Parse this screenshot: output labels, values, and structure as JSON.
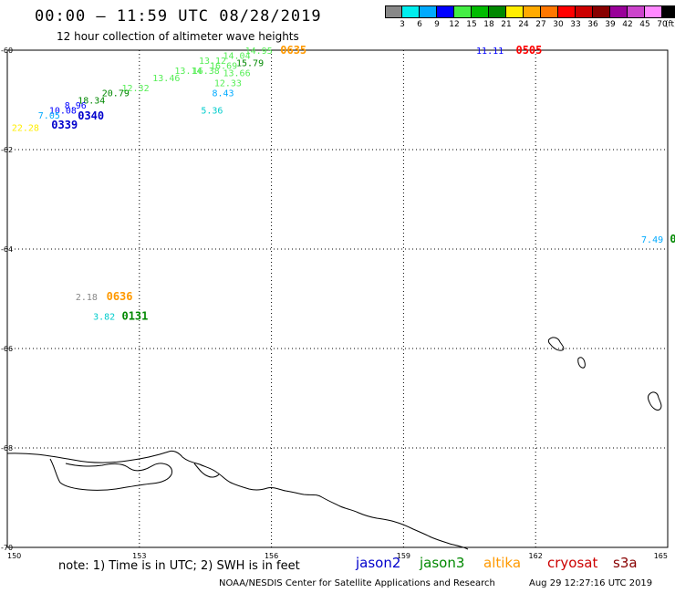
{
  "header": {
    "title": "00:00 – 11:59 UTC 08/28/2019",
    "subtitle": "12 hour collection of altimeter wave heights"
  },
  "colorbar": {
    "unit": "(ft)",
    "swatches": [
      "#888888",
      "#00eeee",
      "#00aaff",
      "#0000ff",
      "#44ee44",
      "#00bb00",
      "#008800",
      "#ffee00",
      "#ffaa00",
      "#ff7700",
      "#ff0000",
      "#cc0000",
      "#880000",
      "#990099",
      "#cc44cc",
      "#ff88ff",
      "#000000"
    ],
    "ticks": [
      "3",
      "6",
      "9",
      "12",
      "15",
      "18",
      "21",
      "24",
      "27",
      "30",
      "33",
      "36",
      "39",
      "42",
      "45",
      "70"
    ]
  },
  "map": {
    "lat_labels": [
      "-60",
      "-62",
      "-64",
      "-66",
      "-68",
      "-70"
    ],
    "lon_labels": [
      "150",
      "153",
      "156",
      "159",
      "162",
      "165"
    ],
    "labels": [
      {
        "text": "0635",
        "color": "#ff9900",
        "lon": 156.2,
        "lat": -60.0,
        "kind": "time"
      },
      {
        "text": "14.95",
        "color": "#55ee55",
        "lon": 155.4,
        "lat": -60.0,
        "kind": "value"
      },
      {
        "text": "14.04",
        "color": "#55ee55",
        "lon": 154.9,
        "lat": -60.1,
        "kind": "value"
      },
      {
        "text": "13.12",
        "color": "#55ee55",
        "lon": 154.35,
        "lat": -60.2,
        "kind": "value"
      },
      {
        "text": "15.79",
        "color": "#008800",
        "lon": 155.2,
        "lat": -60.25,
        "kind": "value"
      },
      {
        "text": "13.66",
        "color": "#55ee55",
        "lon": 154.9,
        "lat": -60.45,
        "kind": "value"
      },
      {
        "text": "13.14",
        "color": "#55ee55",
        "lon": 153.8,
        "lat": -60.4,
        "kind": "value"
      },
      {
        "text": "16.38",
        "color": "#55ee55",
        "lon": 154.2,
        "lat": -60.4,
        "kind": "value"
      },
      {
        "text": "16.69",
        "color": "#55ee55",
        "lon": 154.6,
        "lat": -60.3,
        "kind": "value"
      },
      {
        "text": "13.46",
        "color": "#55ee55",
        "lon": 153.3,
        "lat": -60.55,
        "kind": "value"
      },
      {
        "text": "12.33",
        "color": "#55ee55",
        "lon": 154.7,
        "lat": -60.65,
        "kind": "value"
      },
      {
        "text": "12.32",
        "color": "#55ee55",
        "lon": 152.6,
        "lat": -60.75,
        "kind": "value"
      },
      {
        "text": "8.43",
        "color": "#00aaff",
        "lon": 154.65,
        "lat": -60.85,
        "kind": "value"
      },
      {
        "text": "20.79",
        "color": "#008800",
        "lon": 152.15,
        "lat": -60.85,
        "kind": "value"
      },
      {
        "text": "18.34",
        "color": "#008800",
        "lon": 151.6,
        "lat": -61.0,
        "kind": "value"
      },
      {
        "text": "8.96",
        "color": "#0000ff",
        "lon": 151.3,
        "lat": -61.1,
        "kind": "value"
      },
      {
        "text": "10.08",
        "color": "#0000ff",
        "lon": 150.95,
        "lat": -61.2,
        "kind": "value"
      },
      {
        "text": "5.36",
        "color": "#00cccc",
        "lon": 154.4,
        "lat": -61.2,
        "kind": "value"
      },
      {
        "text": "7.05",
        "color": "#00aaff",
        "lon": 150.7,
        "lat": -61.3,
        "kind": "value"
      },
      {
        "text": "0340",
        "color": "#0000cc",
        "lon": 151.6,
        "lat": -61.32,
        "kind": "time"
      },
      {
        "text": "0339",
        "color": "#0000cc",
        "lon": 151.0,
        "lat": -61.5,
        "kind": "time"
      },
      {
        "text": "22.28",
        "color": "#ffee00",
        "lon": 150.1,
        "lat": -61.55,
        "kind": "value"
      },
      {
        "text": "11.11",
        "color": "#0000ff",
        "lon": 160.65,
        "lat": -60.0,
        "kind": "value"
      },
      {
        "text": "0505",
        "color": "#ff0000",
        "lon": 161.55,
        "lat": -60.0,
        "kind": "time"
      },
      {
        "text": "7.49",
        "color": "#00aaff",
        "lon": 164.4,
        "lat": -63.8,
        "kind": "value"
      },
      {
        "text": "0",
        "color": "#008800",
        "lon": 165.05,
        "lat": -63.8,
        "kind": "time"
      },
      {
        "text": "2.18",
        "color": "#888888",
        "lon": 151.55,
        "lat": -64.95,
        "kind": "value"
      },
      {
        "text": "0636",
        "color": "#ff9900",
        "lon": 152.25,
        "lat": -64.95,
        "kind": "time"
      },
      {
        "text": "3.82",
        "color": "#00cccc",
        "lon": 151.95,
        "lat": -65.35,
        "kind": "value"
      },
      {
        "text": "0131",
        "color": "#008800",
        "lon": 152.6,
        "lat": -65.35,
        "kind": "time"
      }
    ]
  },
  "note": "note:  1) Time is in UTC;  2) SWH is in feet",
  "legend": [
    {
      "label": "jason2",
      "color": "#0000cc"
    },
    {
      "label": "jason3",
      "color": "#008800"
    },
    {
      "label": "altika",
      "color": "#ff9900"
    },
    {
      "label": "cryosat",
      "color": "#cc0000"
    },
    {
      "label": "s3a",
      "color": "#880000"
    }
  ],
  "footer": {
    "credit": "NOAA/NESDIS Center for Satellite Applications and Research",
    "timestamp": "Aug 29 12:27:16 UTC 2019"
  }
}
